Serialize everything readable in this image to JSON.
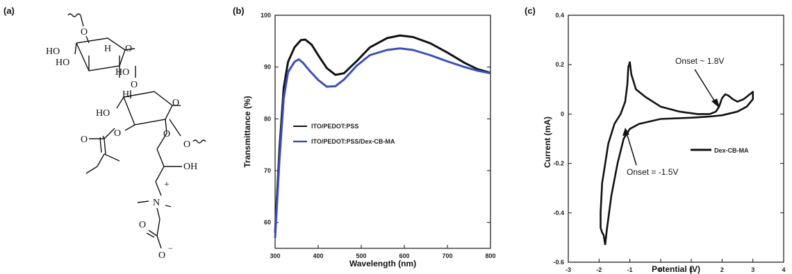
{
  "panels": {
    "a": "(a)",
    "b": "(b)",
    "c": "(c)"
  },
  "structure": {
    "labels": [
      "O",
      "HO",
      "HO",
      "O",
      "HO",
      "H",
      "O",
      "H",
      "HO",
      "O",
      "O",
      "O",
      "O",
      "O",
      "OH",
      "N",
      "+",
      "O",
      "O",
      "−"
    ]
  },
  "chart_data": [
    {
      "type": "line",
      "xlabel": "Wavelength (nm)",
      "ylabel": "Transmittance (%)",
      "xlim": [
        300,
        800
      ],
      "ylim": [
        55,
        100
      ],
      "x_ticks": [
        300,
        400,
        500,
        600,
        700,
        800
      ],
      "y_ticks": [
        60,
        70,
        80,
        90,
        100
      ],
      "legend": "center-left",
      "series": [
        {
          "name": "ITO/PEDOT:PSS",
          "color": "#111111",
          "x": [
            300,
            310,
            320,
            330,
            345,
            360,
            370,
            385,
            400,
            420,
            440,
            460,
            490,
            520,
            560,
            590,
            620,
            660,
            700,
            740,
            770,
            800
          ],
          "y": [
            58,
            74,
            86,
            91,
            93.8,
            95.2,
            95.3,
            94.3,
            92.3,
            89.8,
            88.5,
            88.8,
            91.2,
            93.8,
            95.6,
            96.1,
            95.8,
            94.6,
            92.8,
            90.8,
            89.6,
            88.9
          ]
        },
        {
          "name": "ITO/PEDOT:PSS/Dex-CB-MA",
          "color": "#3b4fb8",
          "x": [
            300,
            310,
            320,
            330,
            345,
            355,
            365,
            380,
            400,
            420,
            440,
            460,
            490,
            520,
            560,
            590,
            620,
            660,
            700,
            740,
            770,
            800
          ],
          "y": [
            57,
            72,
            84,
            89,
            91,
            91.5,
            90.8,
            89.3,
            87.5,
            86.2,
            86.3,
            87.6,
            90.3,
            92.3,
            93.3,
            93.6,
            93.3,
            92.3,
            91.1,
            90.0,
            89.3,
            88.8
          ]
        }
      ]
    },
    {
      "type": "line",
      "xlabel": "Potential (V)",
      "ylabel": "Current (mA)",
      "xlim": [
        -3,
        4
      ],
      "ylim": [
        -0.6,
        0.4
      ],
      "x_ticks": [
        -3,
        -2,
        -1,
        0,
        1,
        2,
        3,
        4
      ],
      "y_ticks": [
        -0.6,
        -0.4,
        -0.2,
        0,
        0.2,
        0.4
      ],
      "legend": "right",
      "series": [
        {
          "name": "Dex-CB-MA",
          "color": "#111111",
          "x": [
            -1.8,
            -1.85,
            -1.9,
            -1.95,
            -1.95,
            -1.9,
            -1.7,
            -1.5,
            -1.3,
            -1.15,
            -1.08,
            -1.05,
            -1.0,
            -0.95,
            -0.8,
            -0.5,
            0.0,
            0.6,
            1.2,
            1.6,
            1.8,
            1.9,
            2.0,
            2.1,
            2.2,
            2.35,
            2.5,
            2.7,
            2.9,
            3.0,
            3.0,
            2.8,
            2.5,
            2.0,
            1.6,
            1.0,
            0.0,
            -0.7,
            -1.0,
            -1.2,
            -1.4,
            -1.6,
            -1.75,
            -1.8
          ],
          "y": [
            -0.53,
            -0.49,
            -0.48,
            -0.46,
            -0.4,
            -0.28,
            -0.12,
            -0.04,
            0.0,
            0.05,
            0.12,
            0.19,
            0.21,
            0.16,
            0.1,
            0.07,
            0.03,
            0.01,
            0.0,
            0.0,
            0.01,
            0.03,
            0.065,
            0.08,
            0.075,
            0.06,
            0.05,
            0.06,
            0.08,
            0.09,
            0.06,
            0.03,
            0.01,
            -0.005,
            -0.01,
            -0.015,
            -0.02,
            -0.04,
            -0.06,
            -0.1,
            -0.2,
            -0.33,
            -0.47,
            -0.53
          ]
        }
      ],
      "annotations": [
        {
          "text": "Onset ~ 1.8V",
          "x": 1.6,
          "y": 0.0
        },
        {
          "text": "Onset = -1.5V",
          "x": -1.5,
          "y": -0.1
        }
      ]
    }
  ]
}
